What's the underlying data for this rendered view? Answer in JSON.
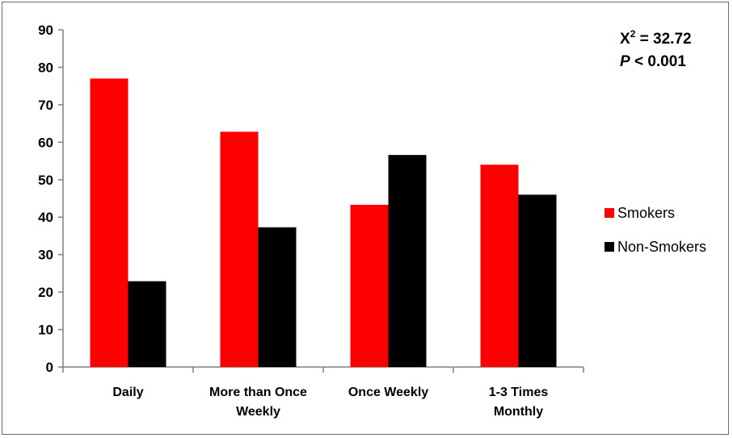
{
  "chart_data": {
    "type": "bar",
    "categories": [
      [
        "Daily"
      ],
      [
        "More than Once",
        "Weekly"
      ],
      [
        "Once Weekly"
      ],
      [
        "1-3 Times",
        "Monthly"
      ]
    ],
    "series": [
      {
        "name": "Smokers",
        "color": "#ff0000",
        "values": [
          77,
          62.8,
          43.3,
          54
        ]
      },
      {
        "name": "Non-Smokers",
        "color": "#000000",
        "values": [
          22.9,
          37.3,
          56.6,
          46
        ]
      }
    ],
    "ylim": [
      0,
      90
    ],
    "yticks": [
      0,
      10,
      20,
      30,
      40,
      50,
      60,
      70,
      80,
      90
    ],
    "grid": false,
    "legend_position": "right",
    "annotation": {
      "stat_symbol": "X",
      "stat_superscript": "2",
      "stat_value": " = 32.72",
      "p_symbol": "P",
      "p_value": " < 0.001"
    }
  }
}
